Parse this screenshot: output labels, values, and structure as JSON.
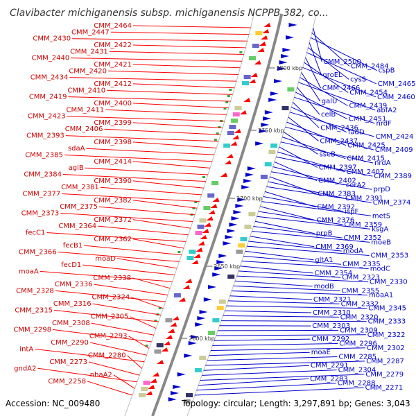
{
  "title": "Clavibacter michiganensis subsp. michiganensis NCPPB 382, co...",
  "accession": "Accession: NC_009480",
  "topology": "Topology: circular; Length: 3,297,891 bp; Genes: 3,043",
  "colors": {
    "left": "#ff0000",
    "right": "#0000cc",
    "backbone": "#888888"
  },
  "kbp_labels": [
    "2800 kbp",
    "2750 kbp",
    "2700 kbp",
    "2650 kbp",
    "2600 kbp"
  ],
  "left_labels": [
    "CMM_2464",
    "CMM_2447",
    "CMM_2430",
    "CMM_2422",
    "CMM_2431",
    "CMM_2440",
    "CMM_2421",
    "CMM_2420",
    "CMM_2434",
    "CMM_2412",
    "CMM_2410",
    "CMM_2419",
    "CMM_2400",
    "CMM_2411",
    "CMM_2423",
    "CMM_2399",
    "CMM_2406",
    "CMM_2393",
    "CMM_2398",
    "sdaA",
    "CMM_2385",
    "CMM_2414",
    "aglB",
    "CMM_2384",
    "CMM_2390",
    "CMM_2381",
    "CMM_2377",
    "CMM_2382",
    "CMM_2375",
    "CMM_2373",
    "CMM_2372",
    "CMM_2364",
    "fecC1",
    "CMM_2362",
    "fecB1",
    "CMM_2366",
    "moaD",
    "fecD1",
    "moaA",
    "CMM_2338",
    "CMM_2336",
    "CMM_2328",
    "CMM_2324",
    "CMM_2316",
    "CMM_2315",
    "CMM_2305",
    "CMM_2308",
    "CMM_2298",
    "CMM_2293",
    "CMM_2290",
    "intA",
    "CMM_2280",
    "CMM_2273",
    "gndA2",
    "nhaA2",
    "CMM_2258"
  ],
  "right_labels": [
    "CMM_2500",
    "CMM_2484",
    "cspB",
    "groEL",
    "cysS",
    "CMM_2465",
    "CMM_2466",
    "CMM_2454",
    "CMM_2460",
    "galU",
    "CMM_2439",
    "abfA2",
    "celB",
    "CMM_2451",
    "nrdF",
    "CMM_2436",
    "fadD",
    "CMM_2424",
    "CMM_2437",
    "CMM_2425",
    "CMM_2409",
    "sseB",
    "CMM_2415",
    "nrdA",
    "CMM_2397",
    "CMM_2407",
    "CMM_2389",
    "CMM_2402",
    "corA2",
    "prpD",
    "CMM_2383",
    "CMM_2391",
    "CMM_2374",
    "CMM_2392",
    "ispF",
    "metS",
    "CMM_2376",
    "CMM_2359",
    "ksgA",
    "prpB",
    "CMM_2352",
    "moeB",
    "CMM_2369",
    "modA",
    "CMM_2353",
    "gltA1",
    "CMM_2335",
    "modC",
    "CMM_2354",
    "CMM_2323",
    "CMM_2330",
    "modB",
    "CMM_2355",
    "moaA1",
    "CMM_2321",
    "CMM_2332",
    "CMM_2345",
    "CMM_2310",
    "CMM_2320",
    "CMM_2333",
    "CMM_2303",
    "CMM_2309",
    "CMM_2322",
    "CMM_2292",
    "CMM_2296",
    "CMM_2302",
    "moaE",
    "CMM_2285",
    "CMM_2287",
    "CMM_2291",
    "CMM_2304",
    "CMM_2279",
    "CMM_2283",
    "CMM_2288",
    "CMM_2271"
  ]
}
